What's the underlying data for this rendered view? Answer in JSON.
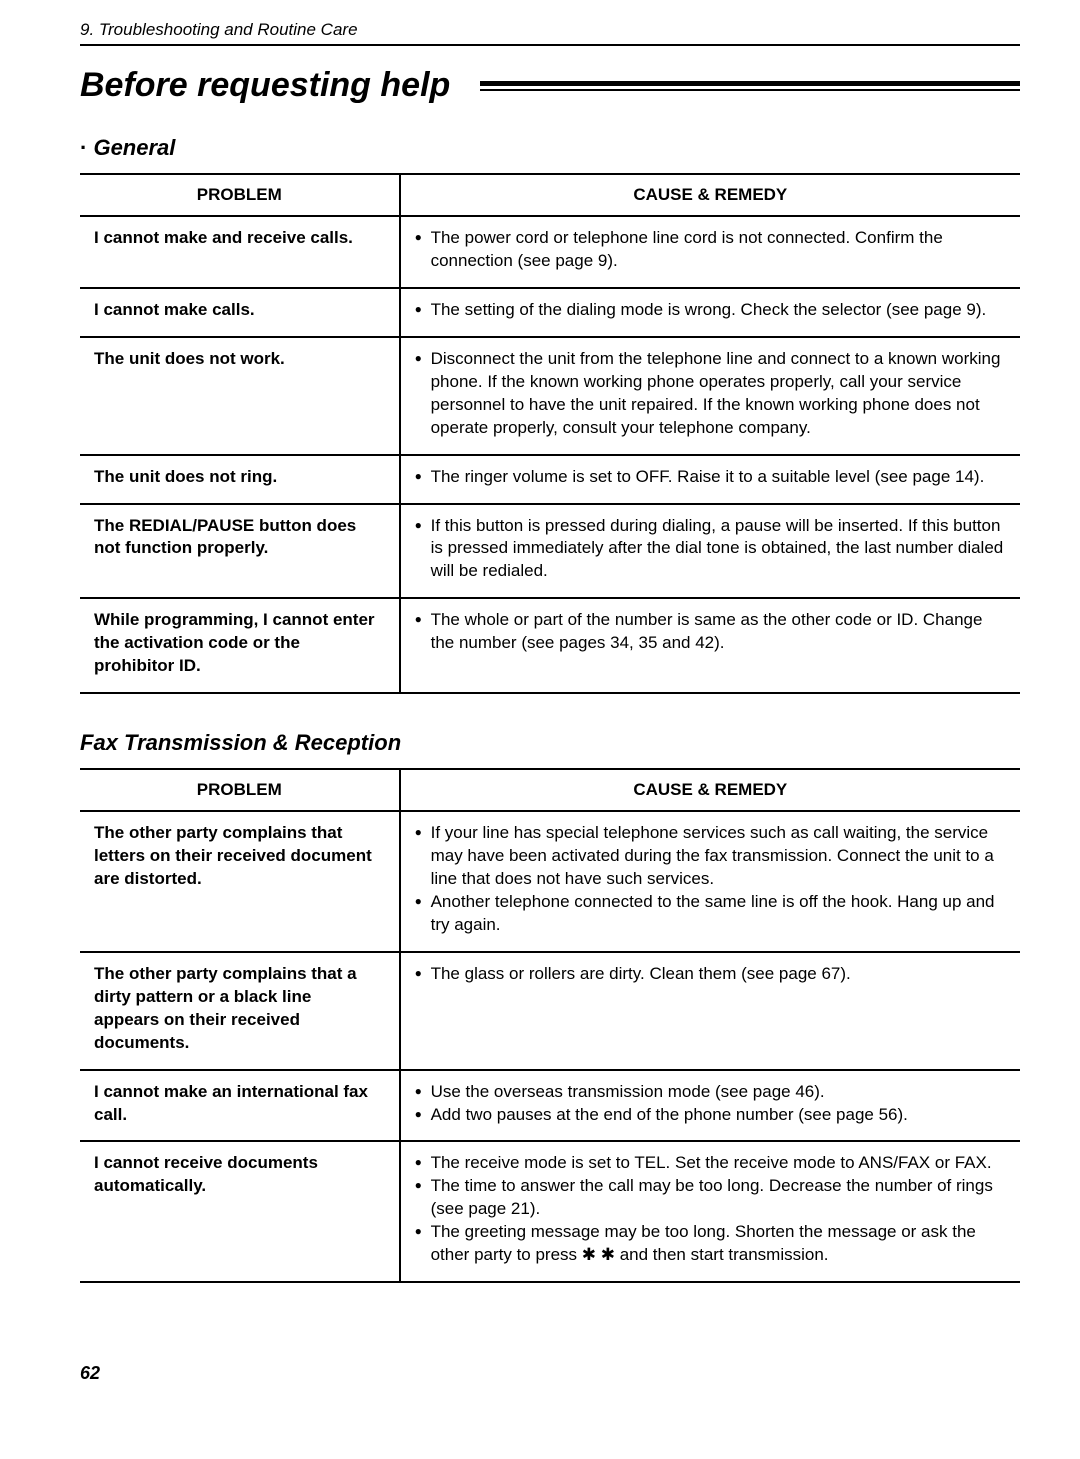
{
  "header": "9.  Troubleshooting and Routine Care",
  "title": "Before requesting help",
  "pageNumber": "62",
  "sections": [
    {
      "name": "General",
      "headers": {
        "problem": "PROBLEM",
        "remedy": "CAUSE & REMEDY"
      },
      "rows": [
        {
          "problem": "I cannot make and receive calls.",
          "remedies": [
            "The power cord or telephone line cord is not connected. Confirm the connection (see page 9)."
          ]
        },
        {
          "problem": "I cannot make calls.",
          "remedies": [
            "The setting of the dialing mode is wrong. Check the selector (see page 9)."
          ]
        },
        {
          "problem": "The unit does not work.",
          "remedies": [
            "Disconnect the unit from the telephone line and connect to a known working phone. If the known working phone operates properly, call your service personnel to have the unit repaired. If the known working phone does not operate properly, consult your telephone company."
          ]
        },
        {
          "problem": "The unit does not ring.",
          "remedies": [
            "The ringer volume is set to OFF. Raise it to a suitable level (see page 14)."
          ]
        },
        {
          "problem": "The REDIAL/PAUSE button does not function properly.",
          "remedies": [
            "If this button is pressed during dialing, a pause will be inserted. If this button is pressed immediately after the dial tone is obtained, the last number dialed will be redialed."
          ]
        },
        {
          "problem": "While programming, I cannot enter the activation code or the prohibitor ID.",
          "remedies": [
            "The whole or part of the number is same as the other code or ID. Change the number (see pages 34, 35 and 42)."
          ]
        }
      ]
    },
    {
      "name": "Fax Transmission & Reception",
      "headers": {
        "problem": "PROBLEM",
        "remedy": "CAUSE & REMEDY"
      },
      "rows": [
        {
          "problem": "The other party complains that letters on their received document are distorted.",
          "remedies": [
            "If your line has special telephone services such as call waiting, the service may have been activated during the fax transmission. Connect the unit to a line that does not have such services.",
            "Another telephone connected to the same line  is off the hook. Hang up and try again."
          ]
        },
        {
          "problem": "The other party complains that a dirty pattern or a black line appears on their received documents.",
          "remedies": [
            "The glass or rollers are dirty. Clean them (see page 67)."
          ]
        },
        {
          "problem": "I cannot make an international fax call.",
          "remedies": [
            "Use the overseas transmission mode (see page 46).",
            "Add two pauses at the end of the phone number (see page 56)."
          ]
        },
        {
          "problem": "I cannot receive documents automatically.",
          "remedies": [
            "The receive mode is set to TEL. Set the receive mode to ANS/FAX or FAX.",
            "The time to answer the call may be too long. Decrease the number of rings (see page 21).",
            "The greeting message may be too long. Shorten the message or ask the other party to press ✱ ✱ and then start transmission."
          ]
        }
      ]
    }
  ]
}
